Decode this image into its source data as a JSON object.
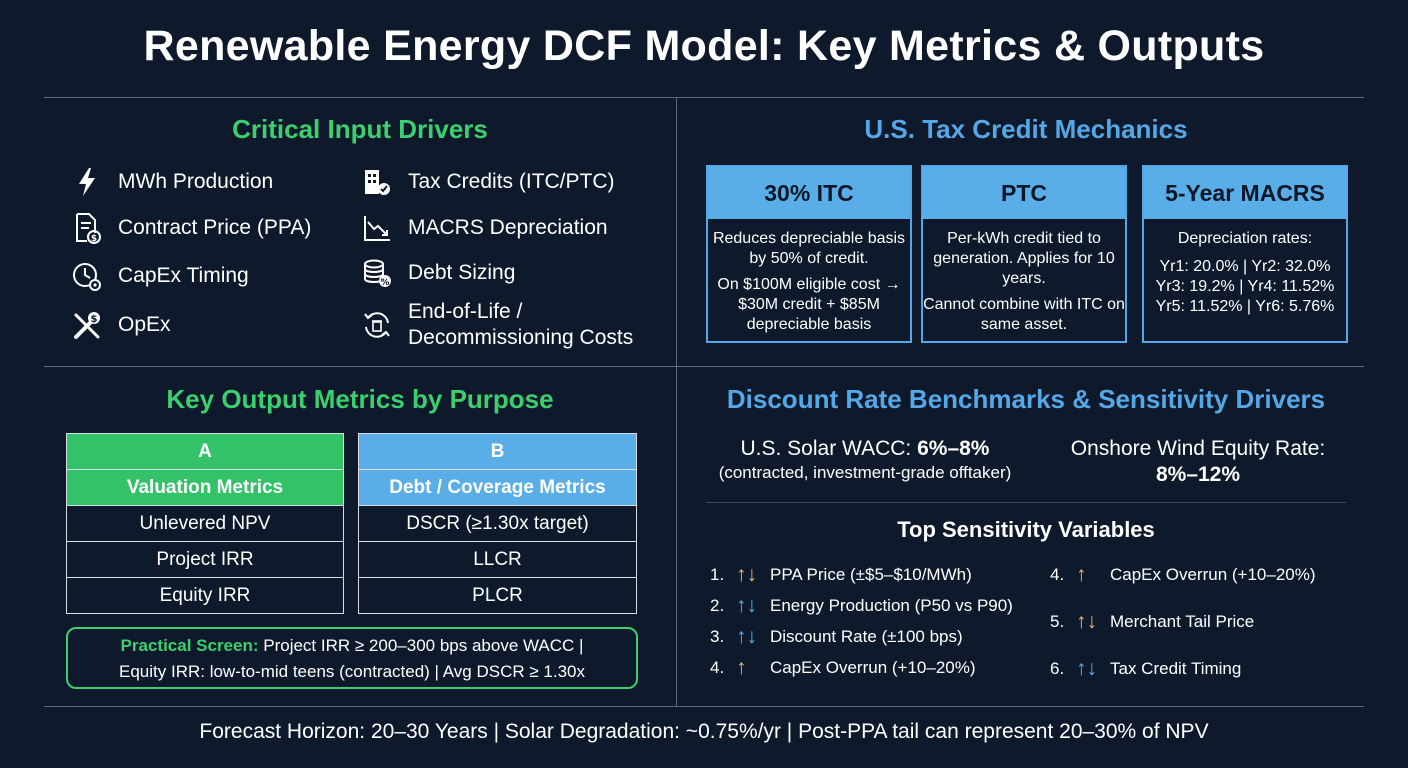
{
  "title": "Renewable Energy DCF Model: Key Metrics & Outputs",
  "inputs": {
    "title": "Critical Input Drivers",
    "left": [
      {
        "label": "MWh Production",
        "icon": "lightning-icon"
      },
      {
        "label": "Contract Price (PPA)",
        "icon": "document-dollar-icon"
      },
      {
        "label": "CapEx Timing",
        "icon": "clock-gear-icon"
      },
      {
        "label": "OpEx",
        "icon": "tools-dollar-icon"
      }
    ],
    "right": [
      {
        "label": "Tax Credits (ITC/PTC)",
        "icon": "building-check-icon"
      },
      {
        "label": "MACRS Depreciation",
        "icon": "declining-chart-icon"
      },
      {
        "label": "Debt Sizing",
        "icon": "coins-percent-icon"
      },
      {
        "label_line1": "End-of-Life /",
        "label_line2": "Decommissioning Costs",
        "icon": "recycle-bin-icon"
      }
    ]
  },
  "tax": {
    "title": "U.S. Tax Credit Mechanics",
    "itc": {
      "head": "30% ITC",
      "p1": "Reduces depreciable basis by 50% of credit.",
      "p2": "On $100M eligible cost → $30M credit + $85M depreciable basis"
    },
    "ptc": {
      "head": "PTC",
      "p1": "Per-kWh credit tied to generation. Applies for 10 years.",
      "p2": "Cannot combine with ITC on same asset."
    },
    "macrs": {
      "head": "5-Year MACRS",
      "intro": "Depreciation rates:",
      "l1": "Yr1: 20.0% | Yr2: 32.0%",
      "l2": "Yr3: 19.2% | Yr4: 11.52%",
      "l3": "Yr5: 11.52% | Yr6: 5.76%"
    }
  },
  "outputs": {
    "title": "Key Output Metrics by Purpose",
    "a": {
      "letter": "A",
      "head": "Valuation Metrics",
      "rows": [
        "Unlevered NPV",
        "Project IRR",
        "Equity IRR"
      ]
    },
    "b": {
      "letter": "B",
      "head": "Debt / Coverage Metrics",
      "rows": [
        "DSCR (≥1.30x target)",
        "LLCR",
        "PLCR"
      ]
    },
    "screen_label": "Practical Screen:",
    "screen_text1": " Project IRR ≥ 200–300 bps above WACC |",
    "screen_text2": "Equity IRR: low-to-mid teens (contracted) | Avg DSCR ≥ 1.30x"
  },
  "discount": {
    "title": "Discount Rate Benchmarks & Sensitivity Drivers",
    "solar_label": "U.S. Solar WACC: ",
    "solar_value": "6%–8%",
    "solar_note": "(contracted, investment-grade offtaker)",
    "wind_label": "Onshore Wind Equity Rate:",
    "wind_value": "8%–12%",
    "sens_title": "Top Sensitivity Variables",
    "left": [
      {
        "num": "1.",
        "arrow": "↑↓",
        "color": "orange",
        "label": "PPA Price (±$5–$10/MWh)"
      },
      {
        "num": "2.",
        "arrow": "↑↓",
        "color": "blue",
        "label": "Energy Production (P50 vs P90)"
      },
      {
        "num": "3.",
        "arrow": "↑↓",
        "color": "blue",
        "label": "Discount Rate (±100 bps)"
      },
      {
        "num": "4.",
        "arrow": "↑",
        "color": "orange",
        "label": "CapEx Overrun (+10–20%)"
      }
    ],
    "right": [
      {
        "num": "4.",
        "arrow": "↑",
        "color": "orange",
        "label": "CapEx Overrun (+10–20%)"
      },
      {
        "num": "5.",
        "arrow": "↑↓",
        "color": "orange",
        "label": "Merchant Tail Price"
      },
      {
        "num": "6.",
        "arrow": "↑↓",
        "color": "blue",
        "label": "Tax Credit Timing"
      }
    ]
  },
  "footer": "Forecast Horizon: 20–30 Years | Solar Degradation: ~0.75%/yr | Post-PPA tail can represent 20–30% of NPV"
}
